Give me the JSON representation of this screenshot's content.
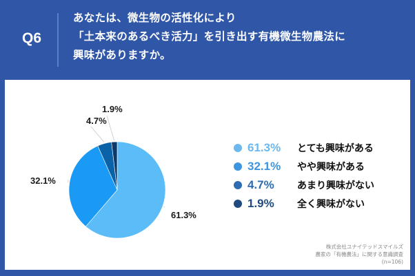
{
  "header": {
    "question_number": "Q6",
    "question_lines": [
      "あなたは、微生物の活性化により",
      "「土本来のあるべき活力」を引き出す有機微生物農法に",
      "興味がありますか。"
    ],
    "background_color": "#2f56a7"
  },
  "chart_data": {
    "type": "pie",
    "title": "あなたは、微生物の活性化により「土本来のあるべき活力」を引き出す有機微生物農法に興味がありますか。",
    "categories": [
      "とても興味がある",
      "やや興味がある",
      "あまり興味がない",
      "全く興味がない"
    ],
    "values": [
      61.3,
      32.1,
      4.7,
      1.9
    ],
    "labels": [
      "61.3%",
      "32.1%",
      "4.7%",
      "1.9%"
    ],
    "colors": [
      "#5bbcf8",
      "#1a9af5",
      "#0a62a8",
      "#0d3a6b"
    ],
    "start_angle": "top, clockwise",
    "legend_position": "right",
    "n": 106
  },
  "legend": {
    "items": [
      {
        "value": "61.3%",
        "label": "とても興味がある",
        "color": "#6cb8ef"
      },
      {
        "value": "32.1%",
        "label": "やや興味がある",
        "color": "#3d95e0"
      },
      {
        "value": "4.7%",
        "label": "あまり興味がない",
        "color": "#2e6cb2"
      },
      {
        "value": "1.9%",
        "label": "全く興味がない",
        "color": "#1f4a80"
      }
    ]
  },
  "source": {
    "line1": "株式会社ユナイテッドスマイルズ",
    "line2": "農家の「有機農法」に関する意識調査",
    "line3": "(n=106)"
  }
}
